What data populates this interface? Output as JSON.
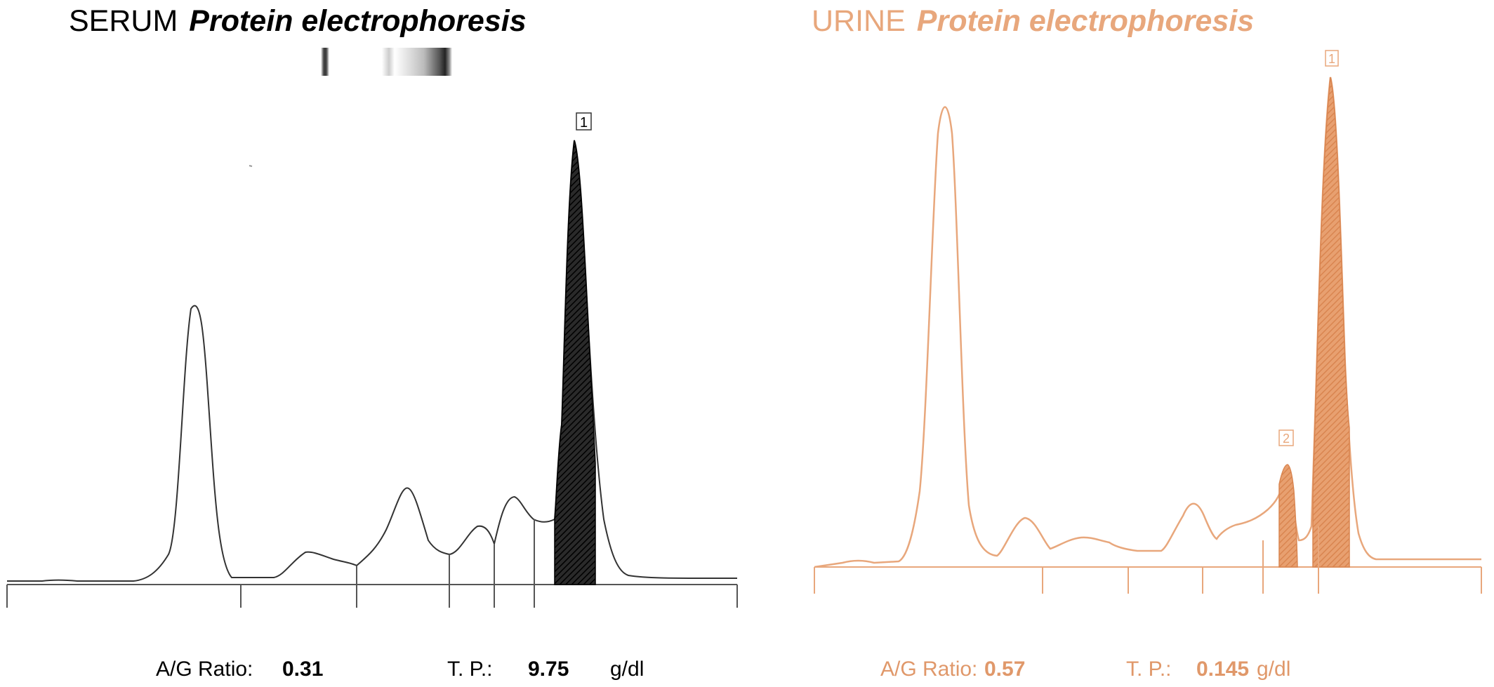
{
  "chart_data": [
    {
      "type": "line",
      "title_main": "SERUM",
      "title_sub": "Protein electrophoresis",
      "color": "#000000",
      "fill_color": "#1a1a1a",
      "peak_labels": [
        "1"
      ],
      "stats": {
        "ag_label": "A/G Ratio:",
        "ag_value": "0.31",
        "tp_label": "T. P.:",
        "tp_value": "9.75",
        "tp_unit": "g/dl"
      }
    },
    {
      "type": "line",
      "title_main": "URINE",
      "title_sub": "Protein electrophoresis",
      "color": "#e8a77c",
      "fill_color": "#e3955f",
      "peak_labels": [
        "1",
        "2"
      ],
      "stats": {
        "ag_label": "A/G Ratio:",
        "ag_value": "0.57",
        "tp_label": "T. P.:",
        "tp_value": "0.145",
        "tp_unit": "g/dl"
      }
    }
  ]
}
